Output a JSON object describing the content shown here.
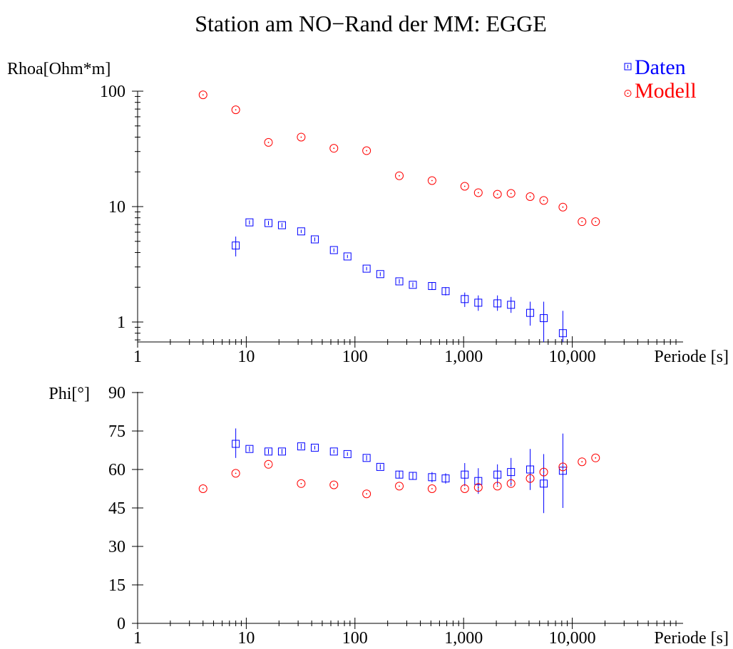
{
  "title": "Station am NO−Rand der MM: EGGE",
  "colors": {
    "data": "#0000ff",
    "model": "#ff0000",
    "axis": "#000000"
  },
  "legend": {
    "placement": "top-right",
    "data_label": "Daten",
    "model_label": "Modell"
  },
  "chart_data": [
    {
      "type": "scatter",
      "panel": "rhoa",
      "ylabel": "Rhoa[Ohm*m]",
      "xlabel": "Periode [s]",
      "xscale": "log",
      "yscale": "log",
      "xlim": [
        1,
        60000
      ],
      "ylim": [
        0.65,
        130
      ],
      "xticks": [
        1,
        10,
        100,
        1000,
        10000
      ],
      "xticklabels": [
        "1",
        "10",
        "100",
        "1,000",
        "10,000"
      ],
      "yticks": [
        1,
        10,
        100
      ],
      "yticklabels": [
        "1",
        "10",
        "100"
      ],
      "series": [
        {
          "name": "Daten",
          "marker": "square",
          "points": [
            {
              "x": 8,
              "y": 4.6,
              "lo": 3.7,
              "hi": 5.5
            },
            {
              "x": 10.7,
              "y": 7.3,
              "lo": 7.0,
              "hi": 7.6
            },
            {
              "x": 16,
              "y": 7.2,
              "lo": 6.9,
              "hi": 7.5
            },
            {
              "x": 21.3,
              "y": 6.9,
              "lo": 6.6,
              "hi": 7.2
            },
            {
              "x": 32,
              "y": 6.1,
              "lo": 5.9,
              "hi": 6.3
            },
            {
              "x": 42.7,
              "y": 5.2,
              "lo": 5.0,
              "hi": 5.4
            },
            {
              "x": 64,
              "y": 4.2,
              "lo": 4.05,
              "hi": 4.35
            },
            {
              "x": 85.3,
              "y": 3.7,
              "lo": 3.58,
              "hi": 3.82
            },
            {
              "x": 128,
              "y": 2.9,
              "lo": 2.8,
              "hi": 3.0
            },
            {
              "x": 171,
              "y": 2.6,
              "lo": 2.5,
              "hi": 2.7
            },
            {
              "x": 256,
              "y": 2.25,
              "lo": 2.15,
              "hi": 2.35
            },
            {
              "x": 341,
              "y": 2.1,
              "lo": 2.0,
              "hi": 2.2
            },
            {
              "x": 512,
              "y": 2.05,
              "lo": 1.9,
              "hi": 2.2
            },
            {
              "x": 683,
              "y": 1.85,
              "lo": 1.7,
              "hi": 2.0
            },
            {
              "x": 1024,
              "y": 1.58,
              "lo": 1.35,
              "hi": 1.8
            },
            {
              "x": 1365,
              "y": 1.47,
              "lo": 1.25,
              "hi": 1.7
            },
            {
              "x": 2048,
              "y": 1.45,
              "lo": 1.25,
              "hi": 1.7
            },
            {
              "x": 2731,
              "y": 1.41,
              "lo": 1.2,
              "hi": 1.65
            },
            {
              "x": 4096,
              "y": 1.2,
              "lo": 0.93,
              "hi": 1.5
            },
            {
              "x": 5461,
              "y": 1.08,
              "lo": 0.65,
              "hi": 1.5
            },
            {
              "x": 8192,
              "y": 0.8,
              "lo": 0.65,
              "hi": 1.25
            }
          ]
        },
        {
          "name": "Modell",
          "marker": "circle",
          "points": [
            {
              "x": 4,
              "y": 93
            },
            {
              "x": 8,
              "y": 69
            },
            {
              "x": 16,
              "y": 36
            },
            {
              "x": 32,
              "y": 40
            },
            {
              "x": 64,
              "y": 32
            },
            {
              "x": 128,
              "y": 30.5
            },
            {
              "x": 256,
              "y": 18.5
            },
            {
              "x": 512,
              "y": 16.8
            },
            {
              "x": 1024,
              "y": 15
            },
            {
              "x": 1365,
              "y": 13.2
            },
            {
              "x": 2048,
              "y": 12.8
            },
            {
              "x": 2731,
              "y": 13
            },
            {
              "x": 4096,
              "y": 12.2
            },
            {
              "x": 5461,
              "y": 11.3
            },
            {
              "x": 8192,
              "y": 9.9
            },
            {
              "x": 12288,
              "y": 7.4
            },
            {
              "x": 16384,
              "y": 7.4
            }
          ]
        }
      ]
    },
    {
      "type": "scatter",
      "panel": "phi",
      "ylabel": "Phi[°]",
      "xlabel": "Periode [s]",
      "xscale": "log",
      "yscale": "linear",
      "xlim": [
        1,
        60000
      ],
      "ylim": [
        0,
        90
      ],
      "xticks": [
        1,
        10,
        100,
        1000,
        10000
      ],
      "xticklabels": [
        "1",
        "10",
        "100",
        "1,000",
        "10,000"
      ],
      "yticks": [
        0,
        15,
        30,
        45,
        60,
        75,
        90
      ],
      "yticklabels": [
        "0",
        "15",
        "30",
        "45",
        "60",
        "75",
        "90"
      ],
      "series": [
        {
          "name": "Daten",
          "marker": "square",
          "points": [
            {
              "x": 8,
              "y": 70,
              "lo": 64.5,
              "hi": 76
            },
            {
              "x": 10.7,
              "y": 68,
              "lo": 67,
              "hi": 69
            },
            {
              "x": 16,
              "y": 67,
              "lo": 66,
              "hi": 68
            },
            {
              "x": 21.3,
              "y": 67,
              "lo": 66,
              "hi": 68
            },
            {
              "x": 32,
              "y": 69,
              "lo": 68,
              "hi": 70
            },
            {
              "x": 42.7,
              "y": 68.5,
              "lo": 67.8,
              "hi": 69.2
            },
            {
              "x": 64,
              "y": 67,
              "lo": 66.3,
              "hi": 67.7
            },
            {
              "x": 85.3,
              "y": 66,
              "lo": 65.3,
              "hi": 66.7
            },
            {
              "x": 128,
              "y": 64.5,
              "lo": 63.5,
              "hi": 65.5
            },
            {
              "x": 171,
              "y": 61,
              "lo": 60,
              "hi": 62
            },
            {
              "x": 256,
              "y": 58,
              "lo": 56.5,
              "hi": 59.5
            },
            {
              "x": 341,
              "y": 57.5,
              "lo": 56,
              "hi": 59
            },
            {
              "x": 512,
              "y": 57,
              "lo": 55,
              "hi": 59
            },
            {
              "x": 683,
              "y": 56.5,
              "lo": 54.5,
              "hi": 58.5
            },
            {
              "x": 1024,
              "y": 58,
              "lo": 53.5,
              "hi": 62.5
            },
            {
              "x": 1365,
              "y": 55.5,
              "lo": 50.5,
              "hi": 60.5
            },
            {
              "x": 2048,
              "y": 58,
              "lo": 54,
              "hi": 62
            },
            {
              "x": 2731,
              "y": 59,
              "lo": 53.5,
              "hi": 64.5
            },
            {
              "x": 4096,
              "y": 60,
              "lo": 52,
              "hi": 68
            },
            {
              "x": 5461,
              "y": 54.5,
              "lo": 43,
              "hi": 66
            },
            {
              "x": 8192,
              "y": 59.5,
              "lo": 45,
              "hi": 74
            }
          ]
        },
        {
          "name": "Modell",
          "marker": "circle",
          "points": [
            {
              "x": 4,
              "y": 52.5
            },
            {
              "x": 8,
              "y": 58.5
            },
            {
              "x": 16,
              "y": 62
            },
            {
              "x": 32,
              "y": 54.5
            },
            {
              "x": 64,
              "y": 54
            },
            {
              "x": 128,
              "y": 50.5
            },
            {
              "x": 256,
              "y": 53.5
            },
            {
              "x": 512,
              "y": 52.5
            },
            {
              "x": 1024,
              "y": 52.5
            },
            {
              "x": 1365,
              "y": 53
            },
            {
              "x": 2048,
              "y": 53.5
            },
            {
              "x": 2731,
              "y": 54.5
            },
            {
              "x": 4096,
              "y": 56.5
            },
            {
              "x": 5461,
              "y": 59
            },
            {
              "x": 8192,
              "y": 61
            },
            {
              "x": 12288,
              "y": 63
            },
            {
              "x": 16384,
              "y": 64.5
            }
          ]
        }
      ]
    }
  ]
}
